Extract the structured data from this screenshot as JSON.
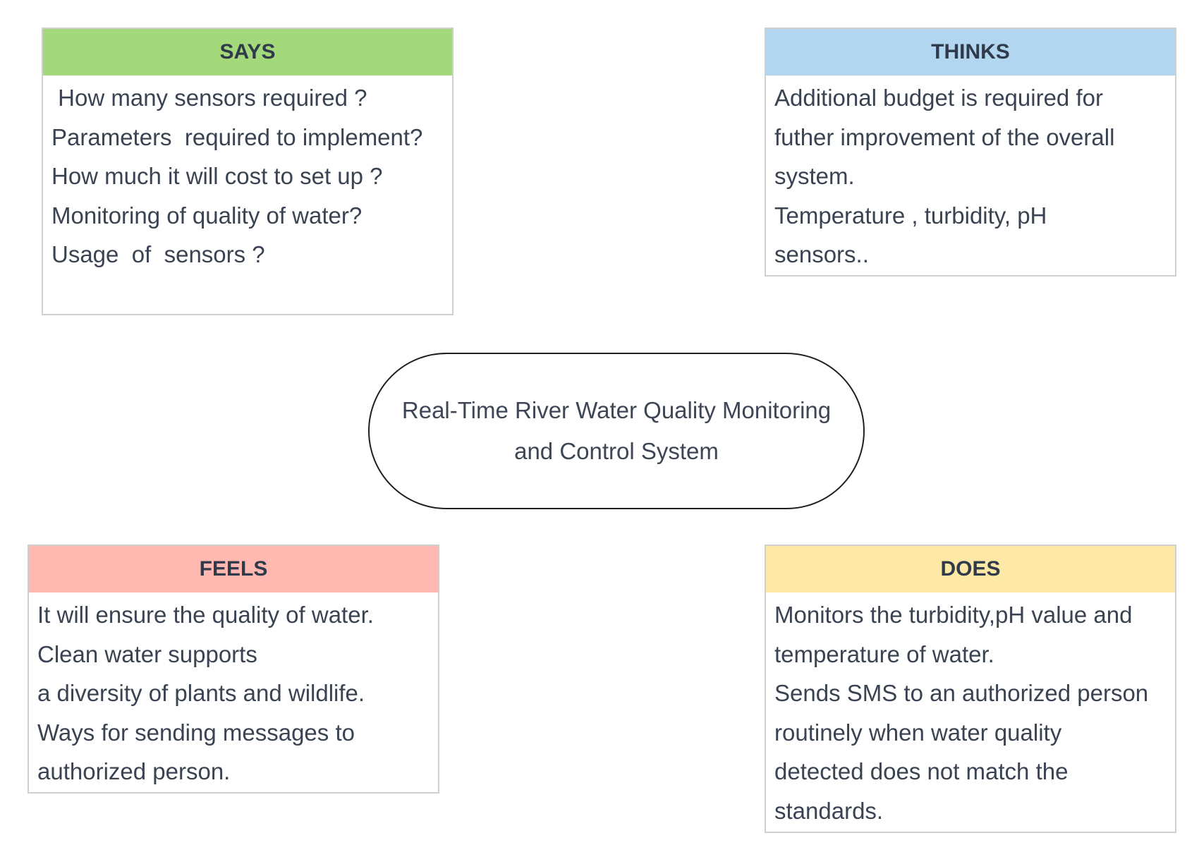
{
  "center": {
    "lines": [
      "Real-Time River Water Quality Monitoring",
      "and Control System"
    ]
  },
  "says": {
    "title": "SAYS",
    "color": "#a4d97b",
    "lines": [
      " How many sensors required ?",
      "Parameters  required to implement?",
      "How much it will cost to set up ?",
      "Monitoring of quality of water?",
      "Usage  of  sensors ?"
    ]
  },
  "thinks": {
    "title": "THINKS",
    "color": "#b3d6f0",
    "lines": [
      "Additional budget is required for",
      "futher improvement of the overall",
      "system.",
      "Temperature , turbidity, pH",
      "sensors.."
    ]
  },
  "feels": {
    "title": "FEELS",
    "color": "#ffb9b0",
    "lines": [
      "It will ensure the quality of water.",
      "Clean water supports",
      "a diversity of plants and wildlife.",
      "Ways for sending messages to",
      "authorized person."
    ]
  },
  "does": {
    "title": "DOES",
    "color": "#fde9a5",
    "lines": [
      "Monitors the turbidity,pH value and",
      "temperature of water.",
      "Sends SMS to an authorized person",
      "routinely when water quality",
      "detected does not match the",
      "standards."
    ]
  }
}
